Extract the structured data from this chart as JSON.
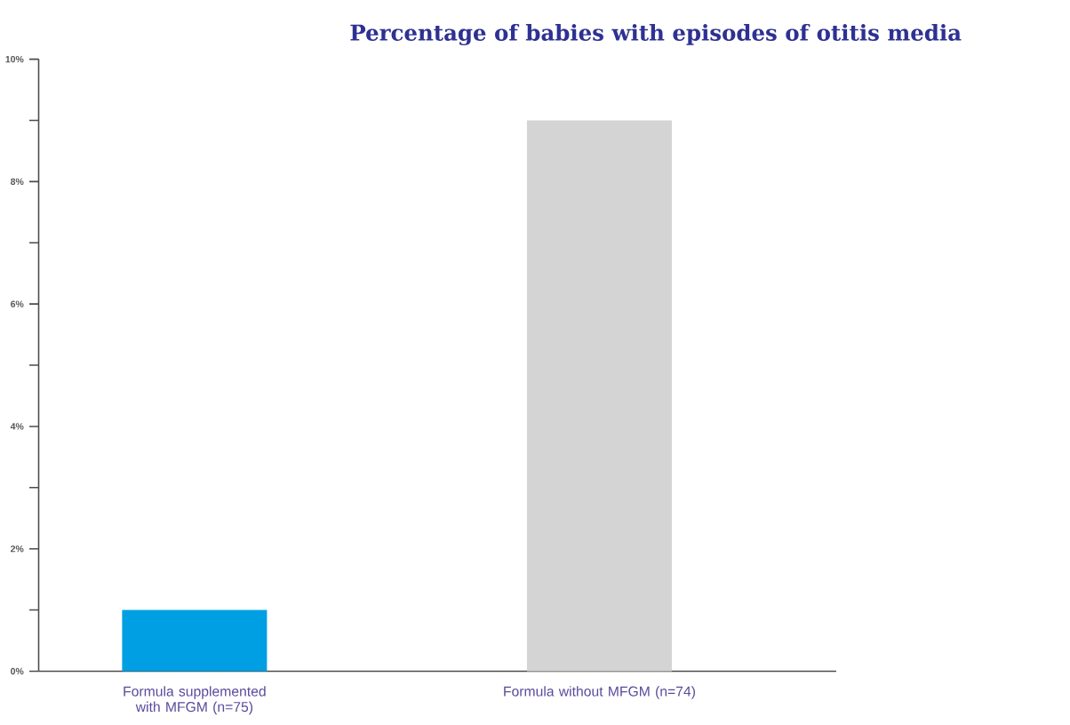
{
  "chart_data": {
    "type": "bar",
    "title": "Percentage of babies with episodes of otitis media",
    "categories": [
      "Formula supplemented with MFGM (n=75)",
      "Formula without MFGM (n=74)"
    ],
    "values": [
      1,
      9
    ],
    "colors": [
      "#009fe3",
      "#d4d4d4"
    ],
    "ylim": [
      0,
      10
    ],
    "yticks": [
      {
        "value": 0,
        "label": "0%"
      },
      {
        "value": 1,
        "label": null
      },
      {
        "value": 2,
        "label": "2%"
      },
      {
        "value": 3,
        "label": null
      },
      {
        "value": 4,
        "label": "4%"
      },
      {
        "value": 5,
        "label": null
      },
      {
        "value": 6,
        "label": "6%"
      },
      {
        "value": 7,
        "label": null
      },
      {
        "value": 8,
        "label": "8%"
      },
      {
        "value": 9,
        "label": null
      },
      {
        "value": 10,
        "label": "10%"
      }
    ]
  }
}
